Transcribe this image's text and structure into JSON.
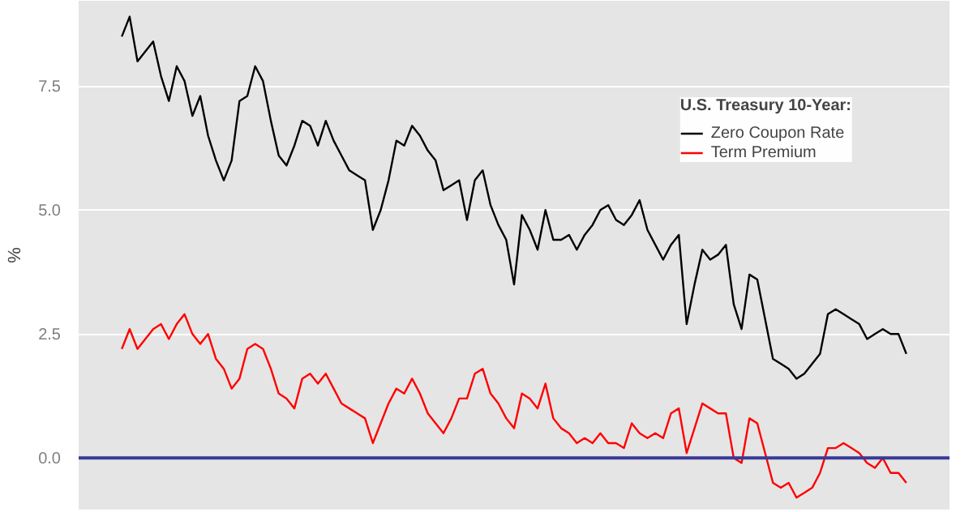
{
  "chart_data": {
    "type": "line",
    "ylabel": "%",
    "legend_title": "U.S. Treasury 10-Year:",
    "legend": "top right",
    "grid": "y",
    "ylim": [
      -1.04,
      9.22
    ],
    "yticks": [
      {
        "value": 0,
        "label": "0.0"
      },
      {
        "value": 2.5,
        "label": "2.5"
      },
      {
        "value": 5,
        "label": "5.0"
      },
      {
        "value": 7.5,
        "label": "7.5"
      }
    ],
    "categories": [
      null,
      null,
      null,
      null,
      null,
      null,
      null,
      null,
      null,
      null,
      null,
      null,
      null,
      null,
      null,
      null,
      null,
      null,
      null,
      null,
      null,
      null,
      null,
      null,
      null,
      null,
      null,
      null,
      null,
      null,
      null,
      null,
      null,
      null,
      null,
      null,
      null,
      null,
      null,
      null,
      null,
      null,
      null,
      null,
      null,
      null,
      null,
      null,
      null,
      null,
      null,
      null,
      null,
      null,
      null,
      null,
      null,
      null,
      null,
      null,
      null,
      null,
      null,
      null,
      null,
      null,
      null,
      null,
      null,
      null,
      null,
      null,
      null,
      null,
      null,
      null,
      null,
      null,
      null,
      null,
      null,
      null,
      null,
      null,
      null,
      null,
      null,
      null,
      null,
      null,
      null,
      null,
      null,
      null,
      null,
      null,
      null,
      null,
      null,
      null,
      null
    ],
    "ref_lines": [
      {
        "axis": "y",
        "value": 0,
        "color": "#3a3a99"
      }
    ],
    "series": [
      {
        "name": "Zero Coupon Rate",
        "color": "#000000",
        "values": [
          8.5,
          8.9,
          8.0,
          8.2,
          8.4,
          7.7,
          7.2,
          7.9,
          7.6,
          6.9,
          7.3,
          6.5,
          6.0,
          5.6,
          6.0,
          7.2,
          7.3,
          7.9,
          7.6,
          6.8,
          6.1,
          5.9,
          6.3,
          6.8,
          6.7,
          6.3,
          6.8,
          6.4,
          6.1,
          5.8,
          5.7,
          5.6,
          4.6,
          5.0,
          5.6,
          6.4,
          6.3,
          6.7,
          6.5,
          6.2,
          6.0,
          5.4,
          5.5,
          5.6,
          4.8,
          5.6,
          5.8,
          5.1,
          4.7,
          4.4,
          3.5,
          4.9,
          4.6,
          4.2,
          5.0,
          4.4,
          4.4,
          4.5,
          4.2,
          4.5,
          4.7,
          5.0,
          5.1,
          4.8,
          4.7,
          4.9,
          5.2,
          4.6,
          4.3,
          4.0,
          4.3,
          4.5,
          2.7,
          3.5,
          4.2,
          4.0,
          4.1,
          4.3,
          3.1,
          2.6,
          3.7,
          3.6,
          2.8,
          2.0,
          1.9,
          1.8,
          1.6,
          1.7,
          1.9,
          2.1,
          2.9,
          3.0,
          2.9,
          2.8,
          2.7,
          2.4,
          2.5,
          2.6,
          2.5,
          2.5,
          2.1
        ]
      },
      {
        "name": "Term Premium",
        "color": "#ff0000",
        "values": [
          2.2,
          2.6,
          2.2,
          2.4,
          2.6,
          2.7,
          2.4,
          2.7,
          2.9,
          2.5,
          2.3,
          2.5,
          2.0,
          1.8,
          1.4,
          1.6,
          2.2,
          2.3,
          2.2,
          1.8,
          1.3,
          1.2,
          1.0,
          1.6,
          1.7,
          1.5,
          1.7,
          1.4,
          1.1,
          1.0,
          0.9,
          0.8,
          0.3,
          0.7,
          1.1,
          1.4,
          1.3,
          1.6,
          1.3,
          0.9,
          0.7,
          0.5,
          0.8,
          1.2,
          1.2,
          1.7,
          1.8,
          1.3,
          1.1,
          0.8,
          0.6,
          1.3,
          1.2,
          1.0,
          1.5,
          0.8,
          0.6,
          0.5,
          0.3,
          0.4,
          0.3,
          0.5,
          0.3,
          0.3,
          0.2,
          0.7,
          0.5,
          0.4,
          0.5,
          0.4,
          0.9,
          1.0,
          0.1,
          0.6,
          1.1,
          1.0,
          0.9,
          0.9,
          0.0,
          -0.1,
          0.8,
          0.7,
          0.1,
          -0.5,
          -0.6,
          -0.5,
          -0.8,
          -0.7,
          -0.6,
          -0.3,
          0.2,
          0.2,
          0.3,
          0.2,
          0.1,
          -0.1,
          -0.2,
          0.0,
          -0.3,
          -0.3,
          -0.5
        ]
      }
    ]
  }
}
